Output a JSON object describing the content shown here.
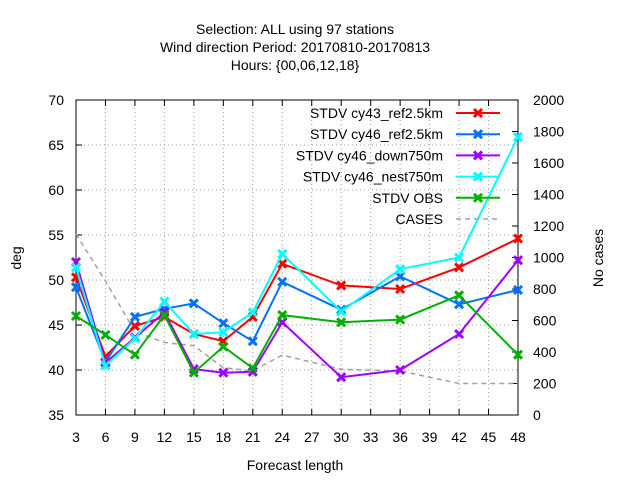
{
  "chart_data": {
    "type": "line",
    "title_lines": [
      "Selection: ALL using    97 stations",
      "Wind direction   Period: 20170810-20170813",
      "Hours: {00,06,12,18}"
    ],
    "xlabel": "Forecast length",
    "ylabel": "deg",
    "y2label": "No cases",
    "x_ticks": [
      "3",
      "6",
      "9",
      "12",
      "15",
      "18",
      "21",
      "24",
      "27",
      "30",
      "33",
      "36",
      "39",
      "42",
      "45",
      "48"
    ],
    "xlim": [
      3,
      48
    ],
    "ylim": [
      35,
      70
    ],
    "y_ticks": [
      "35",
      "40",
      "45",
      "50",
      "55",
      "60",
      "65",
      "70"
    ],
    "y2lim": [
      0,
      2000
    ],
    "y2_ticks": [
      "0",
      "200",
      "400",
      "600",
      "800",
      "1000",
      "1200",
      "1400",
      "1600",
      "1800",
      "2000"
    ],
    "grid": true,
    "legend_position": "top-right",
    "series": [
      {
        "name": "STDV cy43_ref2.5km",
        "color": "#ff0000",
        "marker": "x",
        "axis": "y",
        "x": [
          3,
          6,
          9,
          12,
          15,
          18,
          21,
          24,
          30,
          36,
          42,
          48
        ],
        "values": [
          50.3,
          41.5,
          44.9,
          45.9,
          44.0,
          43.2,
          45.9,
          51.8,
          49.4,
          49.0,
          51.4,
          54.6
        ]
      },
      {
        "name": "STDV cy46_ref2.5km",
        "color": "#0072ff",
        "marker": "x",
        "axis": "y",
        "x": [
          3,
          6,
          9,
          12,
          15,
          18,
          21,
          24,
          30,
          36,
          42,
          48
        ],
        "values": [
          49.2,
          40.9,
          45.9,
          46.8,
          47.4,
          45.2,
          43.2,
          49.8,
          46.7,
          50.4,
          47.3,
          48.9
        ]
      },
      {
        "name": "STDV cy46_down750m",
        "color": "#a000ff",
        "marker": "x",
        "axis": "y",
        "x": [
          3,
          6,
          9,
          12,
          15,
          18,
          21,
          24,
          30,
          36,
          42,
          48
        ],
        "values": [
          52.0,
          40.8,
          43.6,
          46.4,
          40.1,
          39.7,
          39.8,
          45.3,
          39.2,
          40.0,
          44.0,
          52.2
        ]
      },
      {
        "name": "STDV cy46_nest750m",
        "color": "#00ffff",
        "marker": "x",
        "axis": "y",
        "x": [
          3,
          6,
          9,
          12,
          15,
          18,
          21,
          24,
          30,
          36,
          42,
          48
        ],
        "values": [
          51.4,
          40.5,
          43.5,
          47.6,
          44.0,
          44.2,
          46.4,
          52.9,
          46.5,
          51.2,
          52.5,
          65.9
        ]
      },
      {
        "name": "STDV OBS",
        "color": "#00b000",
        "marker": "x",
        "axis": "y",
        "x": [
          3,
          6,
          9,
          12,
          15,
          18,
          21,
          24,
          30,
          36,
          42,
          48
        ],
        "values": [
          46.0,
          43.9,
          41.7,
          46.1,
          39.7,
          42.6,
          40.2,
          46.1,
          45.3,
          45.6,
          48.3,
          41.7
        ]
      },
      {
        "name": "CASES",
        "color": "#a0a0a0",
        "marker": "none",
        "dash": true,
        "axis": "y2",
        "x": [
          3,
          6,
          9,
          12,
          15,
          18,
          21,
          24,
          30,
          36,
          42,
          48
        ],
        "values": [
          1150,
          850,
          530,
          460,
          440,
          300,
          280,
          380,
          290,
          280,
          200,
          200
        ]
      }
    ]
  }
}
